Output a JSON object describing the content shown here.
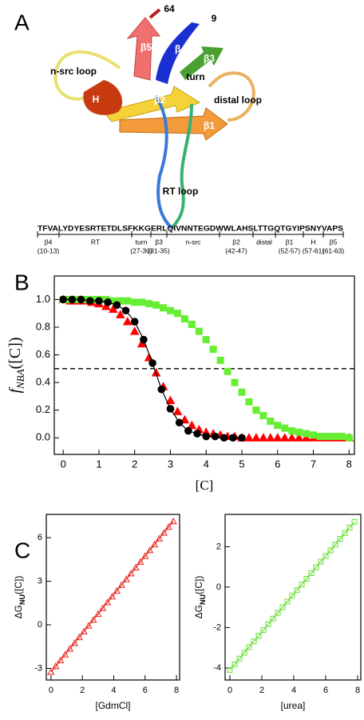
{
  "panel_letters": [
    "A",
    "B",
    "C"
  ],
  "panel_a": {
    "labels": [
      "64",
      "9",
      "β5",
      "β4",
      "β3",
      "n-src loop",
      "turn",
      "H",
      "β2",
      "distal loop",
      "β1",
      "RT loop"
    ],
    "sequence": "TFVALYDYESRTETDLSFKKGERLQIVNNTEGDWWLAHSLTTGQTGYIPSNYVAPS",
    "segments": [
      {
        "name": "β4",
        "range": "(10-13)"
      },
      {
        "name": "RT"
      },
      {
        "name": "turn",
        "range": "(27-30)"
      },
      {
        "name": "β3",
        "range": "(31-35)"
      },
      {
        "name": "n-src"
      },
      {
        "name": "β2",
        "range": "(42-47)"
      },
      {
        "name": "distal"
      },
      {
        "name": "β1",
        "range": "(52-57)"
      },
      {
        "name": "H",
        "range": "(57-61)"
      },
      {
        "name": "β5",
        "range": "(61-63)"
      }
    ]
  },
  "chart_data": [
    {
      "type": "scatter",
      "xlabel": "[C]",
      "ylabel": {
        "main": "f",
        "sub": "NBA",
        "tail": "([C])"
      },
      "xlim": [
        -0.25,
        8.15
      ],
      "ylim": [
        -0.12,
        1.17
      ],
      "xticks": [
        0,
        1,
        2,
        3,
        4,
        5,
        6,
        7,
        8
      ],
      "yticks": [
        {
          "value": 0,
          "label": "0.0"
        },
        {
          "value": 0.2,
          "label": "0.2"
        },
        {
          "value": 0.4,
          "label": "0.4"
        },
        {
          "value": 0.6,
          "label": "0.6"
        },
        {
          "value": 0.8,
          "label": "0.8"
        },
        {
          "value": 1,
          "label": "1.0"
        }
      ],
      "hline": 0.5,
      "series": [
        {
          "color": "#ff0000",
          "marker": "triangle",
          "filled": true,
          "x": [
            0,
            0.2,
            0.4,
            0.6,
            0.8,
            1,
            1.2,
            1.4,
            1.6,
            1.8,
            2,
            2.2,
            2.4,
            2.6,
            2.8,
            3,
            3.2,
            3.4,
            3.6,
            3.8,
            4,
            4.2,
            4.4,
            4.6,
            4.8,
            5,
            5.2,
            5.4,
            5.6,
            5.8,
            6,
            6.2,
            6.4,
            6.6,
            6.8,
            7,
            7.2,
            7.4,
            7.6,
            7.8,
            8
          ],
          "values": [
            1.0,
            0.99,
            0.99,
            0.99,
            0.98,
            0.97,
            0.95,
            0.93,
            0.89,
            0.84,
            0.77,
            0.68,
            0.58,
            0.47,
            0.37,
            0.27,
            0.19,
            0.13,
            0.09,
            0.06,
            0.04,
            0.03,
            0.02,
            0.01,
            0.01,
            0,
            0,
            0,
            0,
            0,
            0,
            0,
            0,
            0,
            0,
            0,
            0,
            0,
            0,
            0,
            0
          ]
        },
        {
          "color": "#66ee33",
          "marker": "square",
          "filled": true,
          "x": [
            0,
            0.2,
            0.4,
            0.6,
            0.8,
            1,
            1.2,
            1.4,
            1.6,
            1.8,
            2,
            2.2,
            2.4,
            2.6,
            2.8,
            3,
            3.2,
            3.4,
            3.6,
            3.8,
            4,
            4.2,
            4.4,
            4.6,
            4.8,
            5,
            5.2,
            5.4,
            5.6,
            5.8,
            6,
            6.2,
            6.4,
            6.6,
            6.8,
            7,
            7.2,
            7.4,
            7.6,
            7.8,
            8
          ],
          "values": [
            1,
            1,
            1,
            1,
            1,
            1,
            1,
            0.99,
            0.99,
            0.99,
            0.98,
            0.98,
            0.97,
            0.96,
            0.94,
            0.92,
            0.9,
            0.86,
            0.82,
            0.77,
            0.71,
            0.64,
            0.56,
            0.48,
            0.4,
            0.33,
            0.26,
            0.2,
            0.16,
            0.12,
            0.09,
            0.07,
            0.05,
            0.04,
            0.03,
            0.02,
            0.01,
            0.01,
            0.01,
            0.01,
            0
          ]
        },
        {
          "color": "#000000",
          "marker": "line",
          "x": [
            0,
            0.25,
            0.5,
            0.75,
            1,
            1.25,
            1.5,
            1.75,
            2,
            2.25,
            2.5,
            2.75,
            3,
            3.25,
            3.5,
            3.75,
            4,
            4.25,
            4.5,
            4.75,
            5
          ],
          "values": [
            1,
            1,
            1,
            0.99,
            0.99,
            0.98,
            0.96,
            0.92,
            0.84,
            0.71,
            0.54,
            0.35,
            0.21,
            0.11,
            0.05,
            0.03,
            0.01,
            0.01,
            0,
            0,
            0
          ]
        },
        {
          "color": "#000000",
          "marker": "circle",
          "filled": true,
          "x": [
            0,
            0.25,
            0.5,
            0.75,
            1,
            1.25,
            1.5,
            1.75,
            2,
            2.25,
            2.5,
            2.75,
            3,
            3.25,
            3.5,
            3.75,
            4,
            4.25,
            4.5,
            4.75,
            5
          ],
          "values": [
            1,
            1,
            1,
            0.99,
            0.99,
            0.98,
            0.96,
            0.92,
            0.84,
            0.71,
            0.54,
            0.35,
            0.21,
            0.11,
            0.05,
            0.03,
            0.01,
            0.01,
            0,
            0,
            0
          ]
        }
      ]
    },
    {
      "type": "scatter",
      "xlabel": "[GdmCl]",
      "ylabel": {
        "main": "ΔG",
        "sub": "NU",
        "tail": "([C])"
      },
      "xlim": [
        -0.3,
        8.2
      ],
      "ylim": [
        -3.8,
        7.6
      ],
      "xticks": [
        0,
        2,
        4,
        6,
        8
      ],
      "yticks": [
        -3,
        0,
        3,
        6
      ],
      "series": [
        {
          "color": "#e8211b",
          "marker": "triangle",
          "filled": false,
          "line": true,
          "x": [
            0,
            0.3,
            0.6,
            0.9,
            1.2,
            1.5,
            1.8,
            2.1,
            2.4,
            2.7,
            3,
            3.3,
            3.6,
            3.9,
            4.2,
            4.5,
            4.8,
            5.1,
            5.4,
            5.7,
            6,
            6.3,
            6.6,
            6.9,
            7.2,
            7.5,
            7.8
          ],
          "values": [
            -3.25,
            -2.85,
            -2.45,
            -2.05,
            -1.65,
            -1.26,
            -0.86,
            -0.46,
            -0.06,
            0.34,
            0.74,
            1.14,
            1.54,
            1.94,
            2.34,
            2.74,
            3.13,
            3.53,
            3.93,
            4.33,
            4.73,
            5.13,
            5.53,
            5.93,
            6.33,
            6.73,
            7.12
          ]
        }
      ]
    },
    {
      "type": "scatter",
      "xlabel": "[urea]",
      "ylabel": {
        "main": "ΔG",
        "sub": "NU",
        "tail": "([C])"
      },
      "xlim": [
        -0.3,
        8.2
      ],
      "ylim": [
        -4.6,
        3.6
      ],
      "xticks": [
        0,
        2,
        4,
        6,
        8
      ],
      "yticks": [
        -4,
        -2,
        0,
        2
      ],
      "series": [
        {
          "color": "#66dd33",
          "marker": "square",
          "filled": false,
          "line": true,
          "x": [
            0,
            0.3,
            0.6,
            0.9,
            1.2,
            1.5,
            1.8,
            2.1,
            2.4,
            2.7,
            3,
            3.3,
            3.6,
            3.9,
            4.2,
            4.5,
            4.8,
            5.1,
            5.4,
            5.7,
            6,
            6.3,
            6.6,
            6.9,
            7.2,
            7.5,
            7.8
          ],
          "values": [
            -4.1,
            -3.82,
            -3.54,
            -3.25,
            -2.97,
            -2.69,
            -2.41,
            -2.13,
            -1.84,
            -1.56,
            -1.28,
            -1.0,
            -0.72,
            -0.43,
            -0.15,
            0.13,
            0.41,
            0.69,
            0.98,
            1.26,
            1.54,
            1.82,
            2.1,
            2.39,
            2.67,
            2.95,
            3.23
          ]
        }
      ]
    }
  ]
}
